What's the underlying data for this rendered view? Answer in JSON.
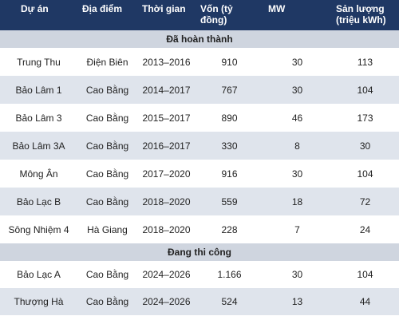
{
  "table": {
    "header": [
      "Dự án",
      "Địa điểm",
      "Thời gian",
      "Vốn (tỷ đồng)",
      "MW",
      "Sản lượng (triệu kWh)"
    ],
    "sections": [
      {
        "title": "Đã hoàn thành",
        "rows": [
          [
            "Trung Thu",
            "Điện Biên",
            "2013–2016",
            "910",
            "30",
            "113"
          ],
          [
            "Bảo Lâm 1",
            "Cao Bằng",
            "2014–2017",
            "767",
            "30",
            "104"
          ],
          [
            "Bảo Lâm 3",
            "Cao Bằng",
            "2015–2017",
            "890",
            "46",
            "173"
          ],
          [
            "Bảo Lâm 3A",
            "Cao Bằng",
            "2016–2017",
            "330",
            "8",
            "30"
          ],
          [
            "Mông Ân",
            "Cao Bằng",
            "2017–2020",
            "916",
            "30",
            "104"
          ],
          [
            "Bảo Lạc B",
            "Cao Bằng",
            "2018–2020",
            "559",
            "18",
            "72"
          ],
          [
            "Sông Nhiệm 4",
            "Hà Giang",
            "2018–2020",
            "228",
            "7",
            "24"
          ]
        ]
      },
      {
        "title": "Đang thi công",
        "rows": [
          [
            "Bảo Lạc A",
            "Cao Bằng",
            "2024–2026",
            "1.166",
            "30",
            "104"
          ],
          [
            "Thượng Hà",
            "Cao Bằng",
            "2024–2026",
            "524",
            "13",
            "44"
          ]
        ]
      }
    ]
  }
}
